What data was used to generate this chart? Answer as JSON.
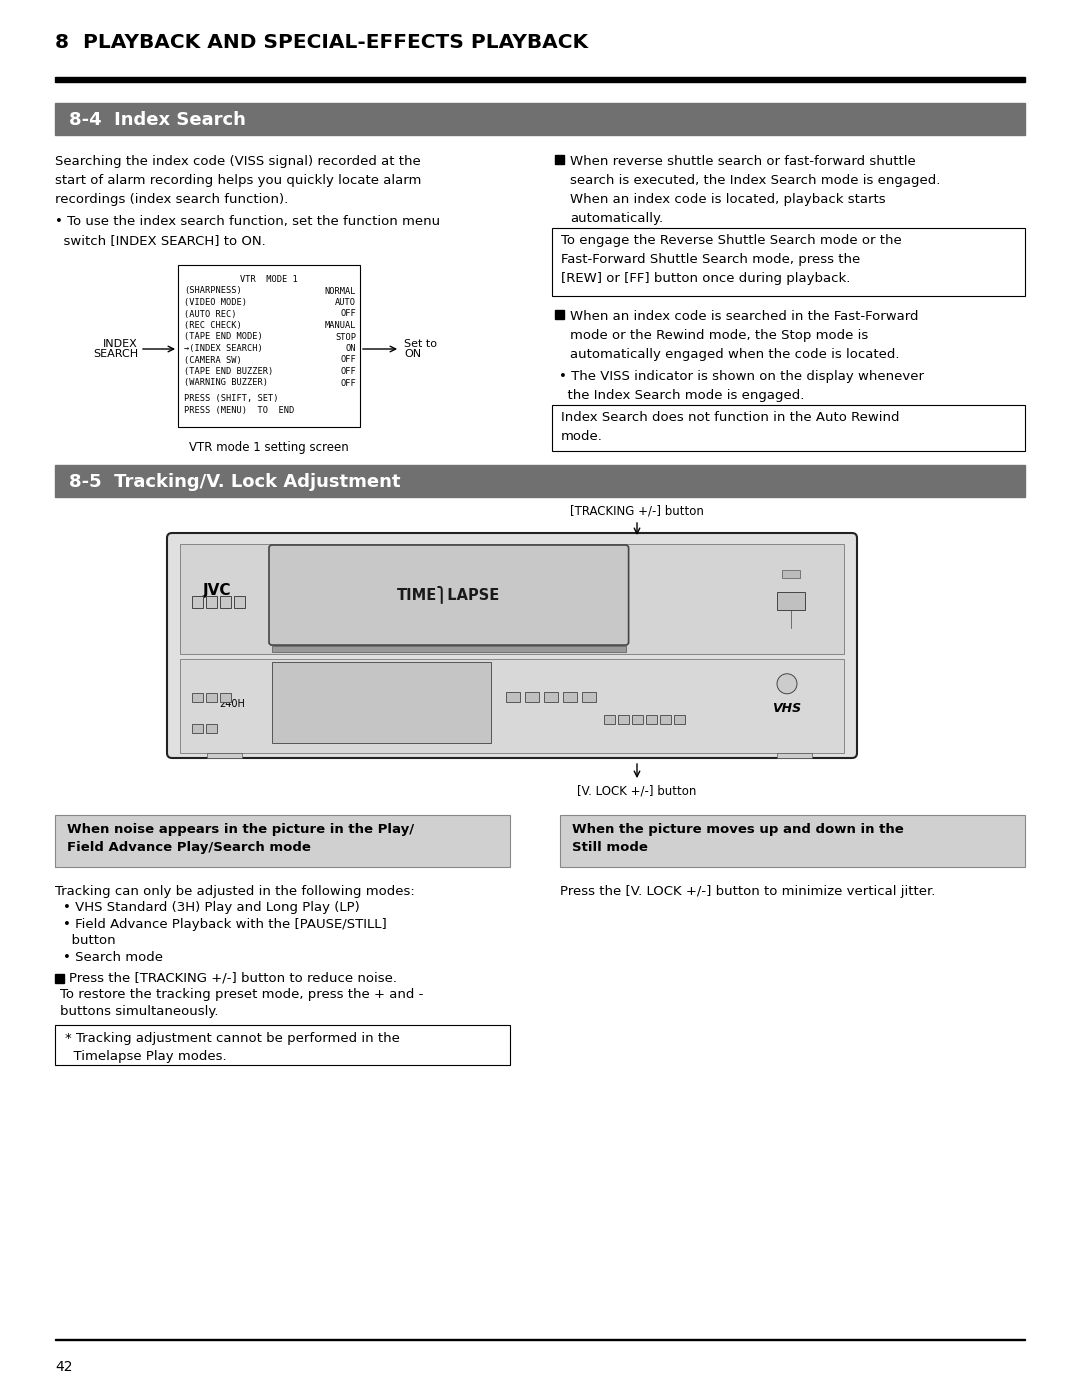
{
  "page_title": "8  PLAYBACK AND SPECIAL-EFFECTS PLAYBACK",
  "section1_title": "8-4  Index Search",
  "section2_title": "8-5  Tracking/V. Lock Adjustment",
  "section_bg": "#707070",
  "section_text_color": "#ffffff",
  "page_bg": "#ffffff",
  "page_number": "42",
  "left_col_text1": "Searching the index code (VISS signal) recorded at the\nstart of alarm recording helps you quickly locate alarm\nrecordings (index search function).",
  "left_col_bullet1": "• To use the index search function, set the function menu\n  switch [INDEX SEARCH] to ON.",
  "vtr_caption": "VTR mode 1 setting screen",
  "right_col_bullet1_line1": "When reverse shuttle search or fast-forward shuttle",
  "right_col_bullet1_line2": "search is executed, the Index Search mode is engaged.",
  "right_col_bullet1_line3": "When an index code is located, playback starts",
  "right_col_bullet1_line4": "automatically.",
  "right_box1_line1": "To engage the Reverse Shuttle Search mode or the",
  "right_box1_line2": "Fast-Forward Shuttle Search mode, press the",
  "right_box1_line3": "[REW] or [FF] button once during playback.",
  "right_col_bullet2_line1": "When an index code is searched in the Fast-Forward",
  "right_col_bullet2_line2": "mode or the Rewind mode, the Stop mode is",
  "right_col_bullet2_line3": "automatically engaged when the code is located.",
  "right_col_sub1": "• The VISS indicator is shown on the display whenever",
  "right_col_sub2": "  the Index Search mode is engaged.",
  "right_box2_line1": "Index Search does not function in the Auto Rewind",
  "right_box2_line2": "mode.",
  "tracking_label_top": "[TRACKING +/-] button",
  "tracking_label_bot": "[V. LOCK +/-] button",
  "box_left_title1": "When noise appears in the picture in the Play/",
  "box_left_title2": "Field Advance Play/Search mode",
  "box_right_title1": "When the picture moves up and down in the",
  "box_right_title2": "Still mode",
  "box_bg": "#d0d0d0",
  "tracking_text1": "Tracking can only be adjusted in the following modes:",
  "tracking_b1": "• VHS Standard (3H) Play and Long Play (LP)",
  "tracking_b2": "• Field Advance Playback with the [PAUSE/STILL]",
  "tracking_b2b": "  button",
  "tracking_b3": "• Search mode",
  "tracking_press1": "Press the [TRACKING +/-] button to reduce noise.",
  "tracking_press2": "To restore the tracking preset mode, press the + and -",
  "tracking_press3": "buttons simultaneously.",
  "tracking_note1": "* Tracking adjustment cannot be performed in the",
  "tracking_note2": "  Timelapse Play modes.",
  "right_still_text": "Press the [V. LOCK +/-] button to minimize vertical jitter."
}
